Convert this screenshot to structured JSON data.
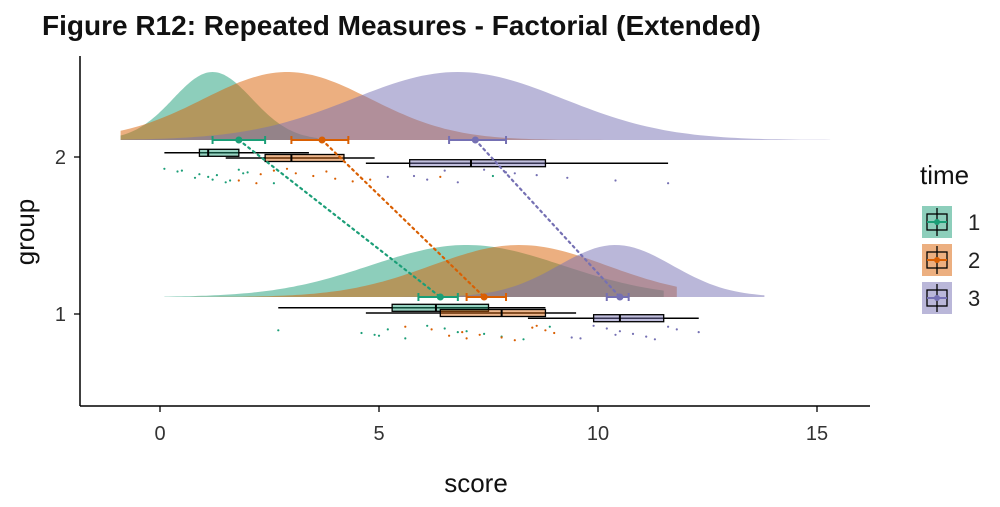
{
  "chart_data": {
    "type": "raincloud",
    "title": "Figure R12: Repeated Measures - Factorial (Extended)",
    "xlabel": "score",
    "ylabel": "group",
    "xlim": [
      -1.8,
      16.1
    ],
    "x_ticks": [
      0,
      5,
      10,
      15
    ],
    "x_tick_labels": [
      "0",
      "5",
      "10",
      "15"
    ],
    "y_categories": [
      "1",
      "2"
    ],
    "grid": false,
    "legend": {
      "title": "time",
      "position": "right",
      "entries": [
        "1",
        "2",
        "3"
      ]
    },
    "colors": {
      "1": "#1b9e77",
      "2": "#d95f02",
      "3": "#7570b3"
    },
    "series": [
      {
        "name": "1",
        "group": "2",
        "mean": 1.8,
        "ci": [
          1.2,
          2.4
        ],
        "median": 1.1,
        "q1": 0.9,
        "q3": 1.8,
        "whisker": [
          0.1,
          3.4
        ],
        "density": {
          "center": 1.2,
          "sd": 0.9,
          "range": [
            -0.9,
            3.6
          ]
        },
        "extra_bump": {
          "center": 7.5,
          "sd": 0.35,
          "height": 0.12
        },
        "points": [
          0.1,
          0.4,
          0.9,
          1.1,
          1.2,
          1.5,
          1.8,
          2.0,
          1.3,
          0.8,
          1.6,
          2.6,
          0.5,
          1.9,
          7.6
        ]
      },
      {
        "name": "2",
        "group": "2",
        "mean": 3.7,
        "ci": [
          3.0,
          4.3
        ],
        "median": 3.0,
        "q1": 2.4,
        "q3": 4.2,
        "whisker": [
          1.5,
          4.9
        ],
        "density": {
          "center": 2.9,
          "sd": 1.9,
          "range": [
            -0.9,
            11.6
          ]
        },
        "points": [
          1.8,
          2.2,
          2.6,
          3.1,
          3.5,
          4.0,
          4.4,
          2.9,
          3.8,
          2.3,
          6.4,
          4.8
        ]
      },
      {
        "name": "3",
        "group": "2",
        "mean": 7.2,
        "ci": [
          6.6,
          7.9
        ],
        "median": 7.1,
        "q1": 5.7,
        "q3": 8.8,
        "whisker": [
          4.7,
          11.6
        ],
        "density": {
          "center": 6.8,
          "sd": 2.4,
          "range": [
            -0.9,
            15.3
          ]
        },
        "points": [
          5.2,
          6.1,
          6.8,
          7.4,
          7.9,
          8.6,
          9.3,
          10.4,
          11.6,
          6.5,
          8.1,
          5.8
        ]
      },
      {
        "name": "1",
        "group": "1",
        "mean": 6.4,
        "ci": [
          5.9,
          6.8
        ],
        "median": 6.3,
        "q1": 5.3,
        "q3": 7.5,
        "whisker": [
          2.7,
          8.8
        ],
        "density": {
          "center": 7.0,
          "sd": 2.2,
          "range": [
            0.1,
            11.5
          ]
        },
        "points": [
          2.7,
          4.6,
          5.0,
          5.6,
          6.1,
          6.5,
          7.0,
          7.4,
          7.8,
          8.3,
          8.9,
          5.2,
          6.8,
          4.9
        ]
      },
      {
        "name": "2",
        "group": "1",
        "mean": 7.4,
        "ci": [
          7.0,
          7.9
        ],
        "median": 7.8,
        "q1": 6.4,
        "q3": 8.8,
        "whisker": [
          4.7,
          9.5
        ],
        "density": {
          "center": 8.2,
          "sd": 2.0,
          "range": [
            0.1,
            11.8
          ]
        },
        "points": [
          5.6,
          6.2,
          6.9,
          7.3,
          7.8,
          8.1,
          8.5,
          8.8,
          9.0,
          6.6,
          7.0,
          8.6
        ]
      },
      {
        "name": "3",
        "group": "1",
        "mean": 10.5,
        "ci": [
          10.2,
          10.7
        ],
        "median": 10.5,
        "q1": 9.9,
        "q3": 11.5,
        "whisker": [
          8.4,
          12.3
        ],
        "density": {
          "center": 10.4,
          "sd": 1.3,
          "range": [
            0.1,
            13.8
          ]
        },
        "points": [
          9.6,
          9.9,
          10.2,
          10.5,
          10.8,
          11.1,
          11.3,
          11.6,
          11.8,
          12.3,
          10.4,
          9.4
        ]
      }
    ],
    "connections": [
      {
        "name": "1",
        "from_group": "2",
        "to_group": "1",
        "from_x": 1.8,
        "to_x": 6.4
      },
      {
        "name": "2",
        "from_group": "2",
        "to_group": "1",
        "from_x": 3.7,
        "to_x": 7.4
      },
      {
        "name": "3",
        "from_group": "2",
        "to_group": "1",
        "from_x": 7.2,
        "to_x": 10.5
      }
    ]
  }
}
